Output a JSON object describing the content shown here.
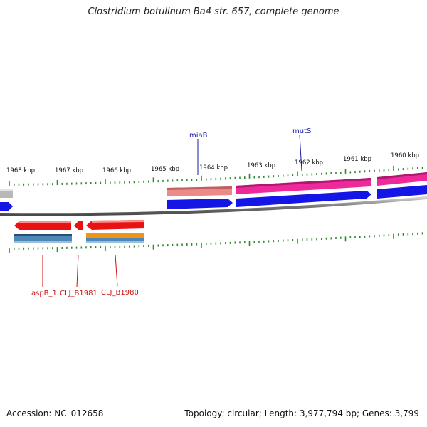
{
  "title": "Clostridium botulinum Ba4 str. 657, complete genome",
  "footer": {
    "accession": "Accession: NC_012658",
    "summary": "Topology: circular; Length: 3,977,794 bp; Genes: 3,799"
  },
  "ruler": {
    "ticks": [
      "1968 kbp",
      "1967 kbp",
      "1966 kbp",
      "1965 kbp",
      "1964 kbp",
      "1963 kbp",
      "1962 kbp",
      "1961 kbp",
      "1960 kbp"
    ]
  },
  "gene_labels": {
    "miaB": "miaB",
    "mutS": "mutS",
    "aspB_1": "aspB_1",
    "CLJ_B1981": "CLJ_B1981",
    "CLJ_B1980": "CLJ_B1980"
  },
  "colors": {
    "label_blue": "#1a1aa6",
    "label_red": "#cc1111",
    "tick_green": "#2e8b2e",
    "backbone": "#808080",
    "gene_blue": "#1515e6",
    "gene_red": "#e81212",
    "gene_pink": "#ee2a9a",
    "gene_salmon": "#ec8a8a",
    "gene_steel": "#4d87b8",
    "gene_orange": "#f09418",
    "gene_grey": "#b8b8b8"
  }
}
